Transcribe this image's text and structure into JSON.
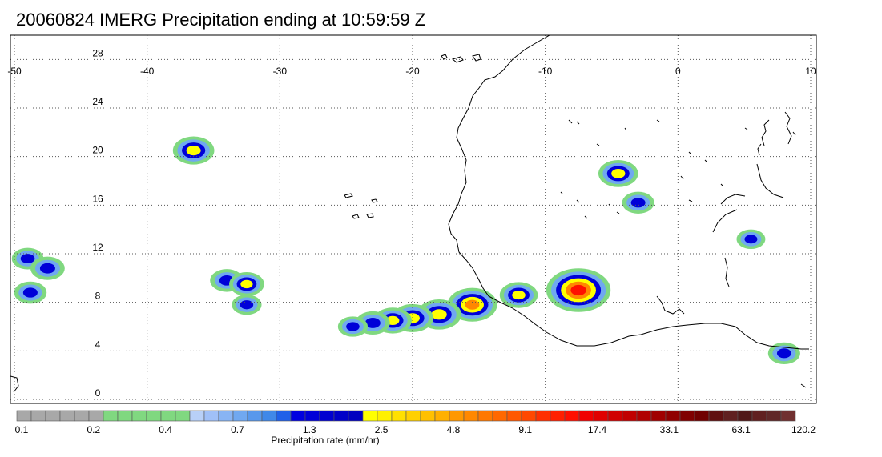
{
  "title": "20060824 IMERG Precipitation ending at 10:59:59 Z",
  "map": {
    "lon_range": [
      -50,
      10
    ],
    "lat_range": [
      0,
      30
    ],
    "lon_ticks": [
      "-50",
      "-40",
      "-30",
      "-20",
      "-10",
      "0",
      "10"
    ],
    "lat_ticks": [
      "28",
      "24",
      "20",
      "16",
      "12",
      "8",
      "4",
      "0"
    ],
    "gridlines": "dotted",
    "coastline_color": "#000000"
  },
  "colorbar": {
    "title": "Precipitation rate (mm/hr)",
    "labels": [
      "0.1",
      "0.2",
      "0.4",
      "0.7",
      "1.3",
      "2.5",
      "4.8",
      "9.1",
      "17.4",
      "33.1",
      "63.1",
      "120.2"
    ],
    "colors": [
      "#a8a8a8",
      "#a8a8a8",
      "#a8a8a8",
      "#a8a8a8",
      "#a8a8a8",
      "#a8a8a8",
      "#80d880",
      "#80d880",
      "#80d880",
      "#80d880",
      "#80d880",
      "#80d880",
      "#b8d0f8",
      "#a0c0f8",
      "#88b4f4",
      "#70a8f0",
      "#5898ec",
      "#4088e8",
      "#2060e8",
      "#0000e0",
      "#0000d8",
      "#0000d0",
      "#0000c8",
      "#0000c0",
      "#ffff00",
      "#fff000",
      "#ffe000",
      "#ffd000",
      "#ffc000",
      "#ffb000",
      "#ff9800",
      "#ff8800",
      "#ff7800",
      "#ff6800",
      "#ff5800",
      "#ff4800",
      "#ff3000",
      "#ff2000",
      "#ff1000",
      "#f00000",
      "#e00000",
      "#d00000",
      "#c00000",
      "#b00000",
      "#a00000",
      "#900000",
      "#800000",
      "#700000",
      "#601010",
      "#602020",
      "#501818",
      "#602020",
      "#602828",
      "#703030"
    ]
  },
  "precip_cells": [
    {
      "lon": -36.5,
      "lat": 20.5,
      "peak": 5.0
    },
    {
      "lon": -7.5,
      "lat": 9.0,
      "peak": 15.0
    },
    {
      "lon": -12.0,
      "lat": 8.6,
      "peak": 4.0
    },
    {
      "lon": -15.5,
      "lat": 7.8,
      "peak": 8.0
    },
    {
      "lon": -18.0,
      "lat": 7.0,
      "peak": 6.0
    },
    {
      "lon": -20.0,
      "lat": 6.7,
      "peak": 5.0
    },
    {
      "lon": -21.5,
      "lat": 6.5,
      "peak": 4.0
    },
    {
      "lon": -23.0,
      "lat": 6.3,
      "peak": 3.0
    },
    {
      "lon": -24.5,
      "lat": 6.0,
      "peak": 2.0
    },
    {
      "lon": -34.0,
      "lat": 9.8,
      "peak": 2.8
    },
    {
      "lon": -32.5,
      "lat": 9.5,
      "peak": 3.2
    },
    {
      "lon": -32.5,
      "lat": 7.8,
      "peak": 2.0
    },
    {
      "lon": -49.0,
      "lat": 11.6,
      "peak": 2.4
    },
    {
      "lon": -47.5,
      "lat": 10.8,
      "peak": 3.0
    },
    {
      "lon": -48.8,
      "lat": 8.8,
      "peak": 2.6
    },
    {
      "lon": -4.5,
      "lat": 18.6,
      "peak": 4.5
    },
    {
      "lon": -3.0,
      "lat": 16.2,
      "peak": 2.5
    },
    {
      "lon": 5.5,
      "lat": 13.2,
      "peak": 1.8
    },
    {
      "lon": 8.0,
      "lat": 3.8,
      "peak": 2.5
    }
  ]
}
